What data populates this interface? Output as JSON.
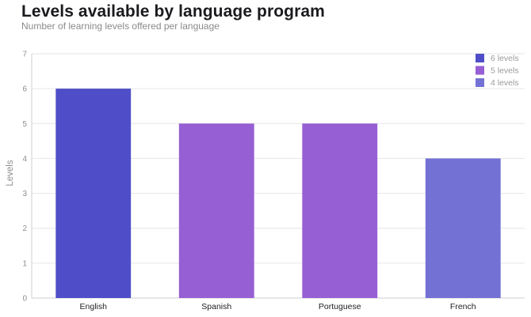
{
  "header": {
    "title": "Levels available by language program",
    "subtitle": "Number of learning levels offered per language"
  },
  "colors": {
    "six_levels": "#4f4ec8",
    "five_levels": "#965fd4",
    "four_levels": "#7371d4",
    "grid": "#e6e6e6",
    "axis": "#cfcfcf"
  },
  "chart_data": {
    "type": "bar",
    "title": "Levels available by language program",
    "subtitle": "Number of learning levels offered per language",
    "xlabel": "",
    "ylabel": "Levels",
    "categories": [
      "English",
      "Spanish",
      "Portuguese",
      "French"
    ],
    "values": [
      6,
      5,
      5,
      4
    ],
    "ylim": [
      0,
      7
    ],
    "yticks": [
      "0",
      "1",
      "2",
      "3",
      "4",
      "5",
      "6",
      "7"
    ],
    "grid": true,
    "legend_position": "top-right",
    "legend": [
      {
        "label": "6 levels",
        "color": "#4f4ec8"
      },
      {
        "label": "5 levels",
        "color": "#965fd4"
      },
      {
        "label": "4 levels",
        "color": "#7371d4"
      }
    ],
    "bar_colors": [
      "#4f4ec8",
      "#965fd4",
      "#965fd4",
      "#7371d4"
    ]
  }
}
